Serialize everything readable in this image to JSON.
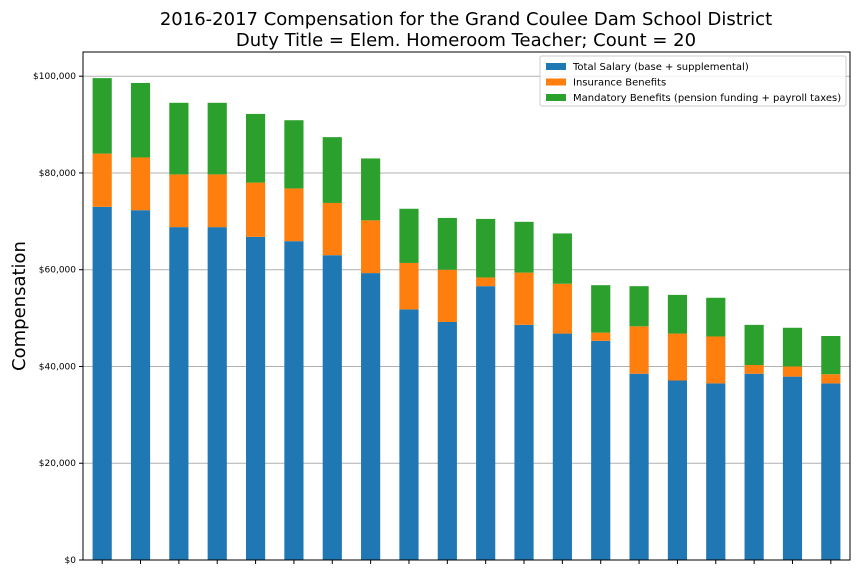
{
  "chart_data": {
    "type": "bar",
    "stacked": true,
    "title": [
      "2016-2017 Compensation for the Grand Coulee Dam School District",
      "Duty Title = Elem. Homeroom Teacher; Count = 20"
    ],
    "xlabel": "",
    "ylabel": "Compensation",
    "ylim": [
      0,
      105000
    ],
    "yticks": [
      0,
      20000,
      40000,
      60000,
      80000,
      100000
    ],
    "ytick_labels": [
      "$0",
      "$20,000",
      "$40,000",
      "$60,000",
      "$80,000",
      "$100,000"
    ],
    "grid": "horizontal",
    "legend_position": "top-right",
    "categories": [
      "",
      "",
      "",
      "",
      "",
      "",
      "",
      "",
      "",
      "",
      "",
      "",
      "",
      "",
      "",
      "",
      "",
      "",
      "",
      ""
    ],
    "series": [
      {
        "name": "Total Salary (base + supplemental)",
        "color": "#1f77b4",
        "values": [
          73000,
          72300,
          68800,
          68800,
          66800,
          65900,
          63000,
          59300,
          51800,
          49200,
          56600,
          48600,
          46800,
          45300,
          38500,
          37100,
          36500,
          38500,
          37900,
          36500
        ]
      },
      {
        "name": "Insurance Benefits",
        "color": "#ff7f0e",
        "values": [
          11000,
          10900,
          10900,
          10900,
          11200,
          10900,
          10800,
          10900,
          9600,
          10800,
          1800,
          10800,
          10300,
          1700,
          9800,
          9700,
          9700,
          1800,
          2100,
          1900
        ]
      },
      {
        "name": "Mandatory Benefits (pension funding + payroll taxes)",
        "color": "#2ca02c",
        "values": [
          15600,
          15400,
          14800,
          14800,
          14200,
          14100,
          13600,
          12800,
          11200,
          10700,
          12100,
          10500,
          10400,
          9800,
          8300,
          8000,
          8000,
          8300,
          8000,
          7900
        ]
      }
    ]
  }
}
